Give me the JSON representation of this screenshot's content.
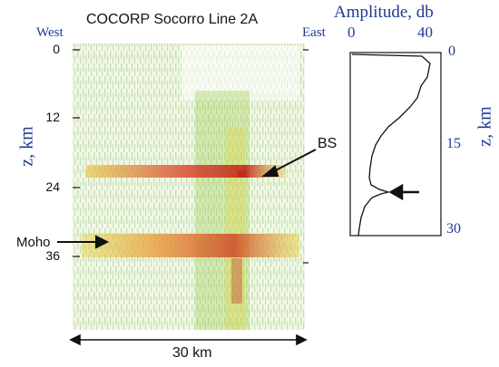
{
  "header": {
    "title": "COCORP Socorro Line 2A",
    "west": "West",
    "east": "East"
  },
  "seismic": {
    "z_ticks": [
      "0",
      "12",
      "24",
      "36"
    ],
    "z_label": "z, km",
    "width_label": "30 km",
    "annotations": {
      "bs": "BS",
      "moho": "Moho"
    },
    "colors": {
      "background": "#f5f8ee",
      "green": "#6fbf3f",
      "yellow": "#e8d44a",
      "red": "#c0281c"
    }
  },
  "amplitude_plot": {
    "title": "Amplitude, db",
    "x_ticks": [
      "0",
      "40"
    ],
    "z_ticks": [
      "0",
      "15",
      "30"
    ],
    "z_label": "z, km",
    "title_color": "#1f3a93"
  }
}
